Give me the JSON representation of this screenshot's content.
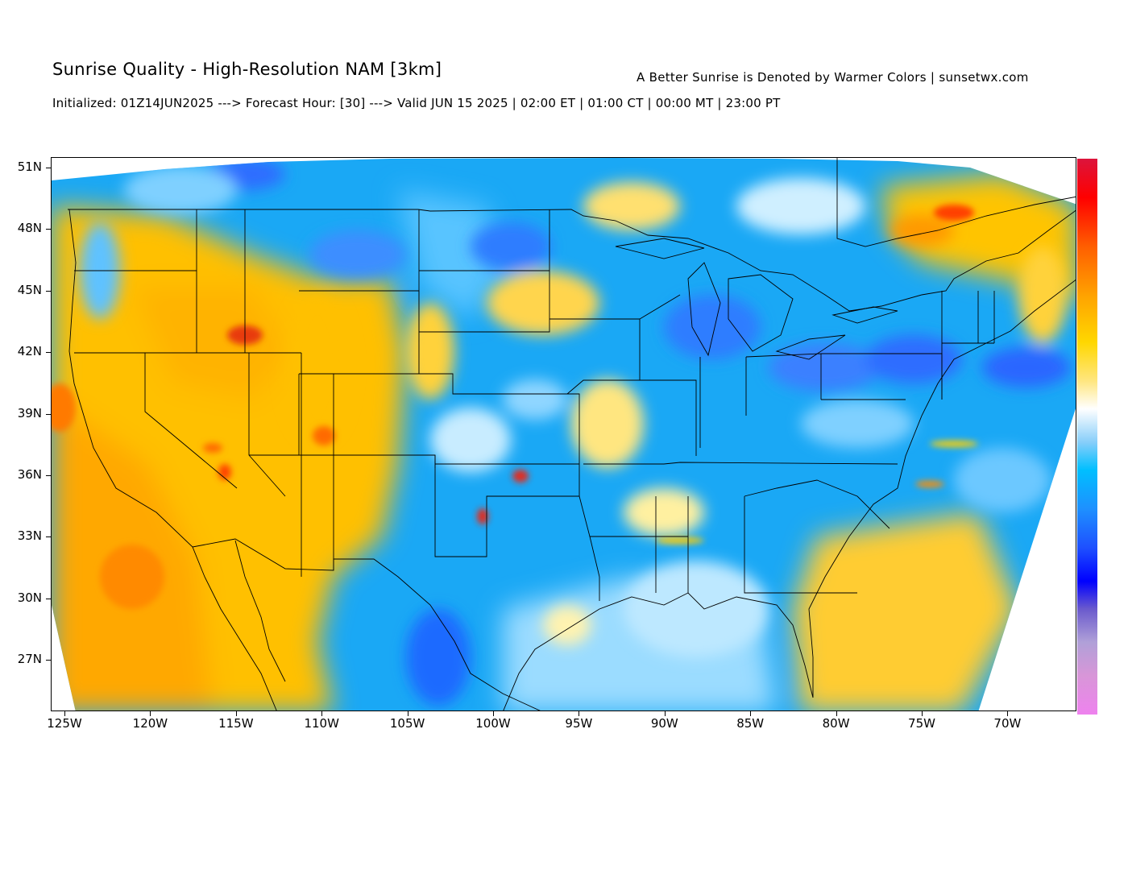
{
  "header": {
    "title": "Sunrise Quality - High-Resolution NAM [3km]",
    "subtitle": "A Better Sunrise is Denoted by Warmer Colors | sunsetwx.com",
    "init_line": "Initialized: 01Z14JUN2025 ---> Forecast Hour: [30] ---> Valid JUN 15 2025 | 02:00 ET | 01:00 CT | 00:00 MT | 23:00 PT"
  },
  "map": {
    "region": "Contiguous United States",
    "projection": "lat-lon",
    "lon_range": [
      -125.8,
      -65.0
    ],
    "lat_range": [
      24.7,
      51.5
    ],
    "lat_ticks": [
      "51N",
      "48N",
      "45N",
      "42N",
      "39N",
      "36N",
      "33N",
      "30N",
      "27N"
    ],
    "lon_ticks": [
      "125W",
      "120W",
      "115W",
      "110W",
      "105W",
      "100W",
      "95W",
      "90W",
      "85W",
      "80W",
      "75W",
      "70W"
    ],
    "colorbar_colors": [
      "#ee82ee",
      "#d896d8",
      "#b0a0d8",
      "#6a5acd",
      "#0000ff",
      "#1e50ff",
      "#1e90ff",
      "#00bfff",
      "#87cefa",
      "#ffffff",
      "#ffe680",
      "#ffd700",
      "#ffa500",
      "#ff6000",
      "#ff0000",
      "#dc143c"
    ],
    "warm_regions": [
      "Southwest / Great Basin",
      "Pacific Ocean",
      "Quebec",
      "Western Atlantic",
      "Northern Mexico"
    ],
    "cool_regions": [
      "Central Plains",
      "Great Lakes",
      "Ohio Valley",
      "Southeast",
      "Gulf of Mexico",
      "Northeast"
    ]
  }
}
